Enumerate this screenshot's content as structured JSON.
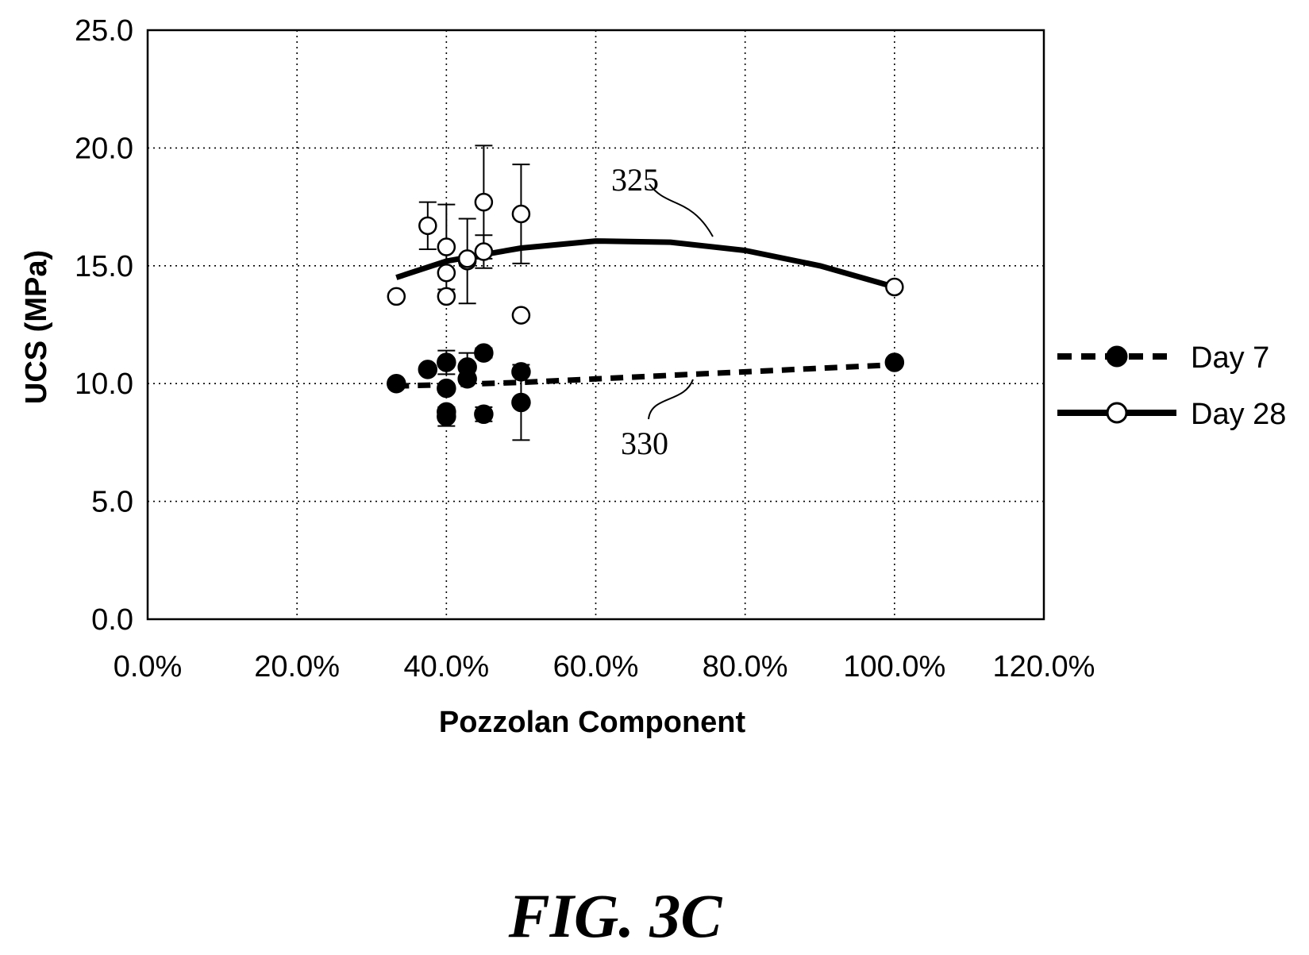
{
  "figure_label": "FIG. 3C",
  "chart_data": {
    "type": "scatter",
    "xlabel": "Pozzolan Component",
    "ylabel": "UCS (MPa)",
    "xlim": [
      0,
      1.2
    ],
    "ylim": [
      0,
      25
    ],
    "x_ticks": [
      0,
      0.2,
      0.4,
      0.6,
      0.8,
      1.0,
      1.2
    ],
    "x_tick_labels": [
      "0.0%",
      "20.0%",
      "40.0%",
      "60.0%",
      "80.0%",
      "100.0%",
      "120.0%"
    ],
    "y_ticks": [
      0,
      5,
      10,
      15,
      20,
      25
    ],
    "y_tick_labels": [
      "0.0",
      "5.0",
      "10.0",
      "15.0",
      "20.0",
      "25.0"
    ],
    "grid": true,
    "legend_position": "right",
    "series": [
      {
        "name": "Day 7",
        "marker": "filled-circle",
        "line_style": "dashed",
        "color": "#000000",
        "points": [
          {
            "x": 0.333,
            "y": 10.0
          },
          {
            "x": 0.375,
            "y": 10.6
          },
          {
            "x": 0.4,
            "y": 10.9,
            "err": 0.5
          },
          {
            "x": 0.4,
            "y": 9.8
          },
          {
            "x": 0.4,
            "y": 8.8
          },
          {
            "x": 0.4,
            "y": 8.6,
            "err": 0.4
          },
          {
            "x": 0.428,
            "y": 10.7,
            "err": 0.6
          },
          {
            "x": 0.428,
            "y": 10.2
          },
          {
            "x": 0.45,
            "y": 11.3,
            "err": 0.2
          },
          {
            "x": 0.45,
            "y": 8.7,
            "err": 0.3
          },
          {
            "x": 0.5,
            "y": 10.5
          },
          {
            "x": 0.5,
            "y": 9.2,
            "err": 1.6
          },
          {
            "x": 1.0,
            "y": 10.9
          }
        ],
        "trendline": {
          "label": "330",
          "x": [
            0.333,
            0.4,
            0.5,
            0.6,
            0.7,
            0.8,
            0.9,
            1.0
          ],
          "y": [
            9.9,
            9.95,
            10.05,
            10.2,
            10.35,
            10.5,
            10.65,
            10.8
          ]
        }
      },
      {
        "name": "Day 28",
        "marker": "open-circle",
        "line_style": "solid",
        "color": "#000000",
        "points": [
          {
            "x": 0.333,
            "y": 13.7
          },
          {
            "x": 0.375,
            "y": 16.7,
            "err": 1.0
          },
          {
            "x": 0.4,
            "y": 15.8,
            "err": 1.8
          },
          {
            "x": 0.4,
            "y": 14.7
          },
          {
            "x": 0.4,
            "y": 13.7
          },
          {
            "x": 0.428,
            "y": 15.2,
            "err": 1.8
          },
          {
            "x": 0.428,
            "y": 15.3
          },
          {
            "x": 0.45,
            "y": 17.7,
            "err": 2.4
          },
          {
            "x": 0.45,
            "y": 15.6,
            "err": 0.7
          },
          {
            "x": 0.5,
            "y": 17.2,
            "err": 2.1
          },
          {
            "x": 0.5,
            "y": 12.9
          },
          {
            "x": 1.0,
            "y": 14.1
          }
        ],
        "trendline": {
          "label": "325",
          "x": [
            0.333,
            0.4,
            0.5,
            0.6,
            0.7,
            0.8,
            0.9,
            1.0
          ],
          "y": [
            14.5,
            15.2,
            15.75,
            16.05,
            16.0,
            15.65,
            15.0,
            14.1
          ]
        }
      }
    ]
  }
}
